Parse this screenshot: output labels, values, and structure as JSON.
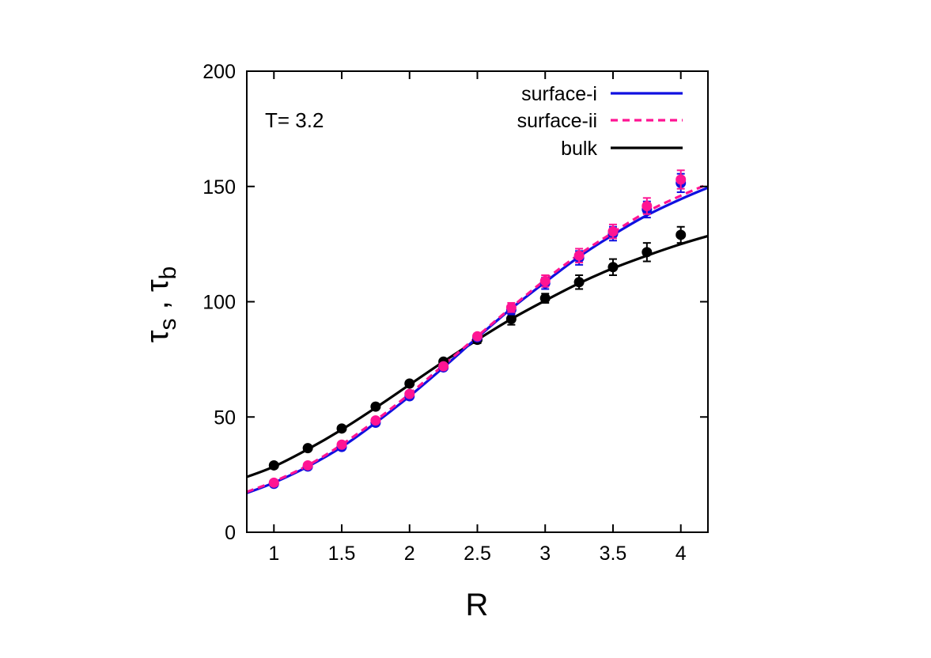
{
  "chart_data": {
    "type": "scatter",
    "title": "",
    "xlabel": "R",
    "ylabel_main": "τ",
    "ylabel_sub1": "s",
    "ylabel_sep": " , ",
    "ylabel_sub2": "b",
    "xlim": [
      0.8,
      4.2
    ],
    "ylim": [
      0,
      200
    ],
    "xticks": [
      1,
      1.5,
      2,
      2.5,
      3,
      3.5,
      4
    ],
    "xtick_labels": [
      "1",
      "1.5",
      "2",
      "2.5",
      "3",
      "3.5",
      "4"
    ],
    "yticks": [
      0,
      50,
      100,
      150,
      200
    ],
    "ytick_labels": [
      "0",
      "50",
      "100",
      "150",
      "200"
    ],
    "grid": false,
    "legend_position": "top-right",
    "annotation": "T= 3.2",
    "series": [
      {
        "name": "surface-i",
        "color": "#1010e0",
        "line_style": "solid",
        "x": [
          1,
          1.25,
          1.5,
          1.75,
          2,
          2.25,
          2.5,
          2.75,
          3,
          3.25,
          3.5,
          3.75,
          4
        ],
        "y": [
          21,
          28.5,
          37,
          47.5,
          59,
          71.5,
          84.5,
          96.5,
          108,
          119,
          129.5,
          140,
          151.5
        ],
        "err": [
          1,
          1,
          1,
          1,
          1,
          1,
          1,
          2,
          2.5,
          3,
          3,
          3.5,
          4
        ],
        "fit_x": [
          0.8,
          1,
          1.25,
          1.5,
          1.75,
          2,
          2.25,
          2.5,
          2.75,
          3,
          3.25,
          3.5,
          3.75,
          4,
          4.2
        ],
        "fit_y": [
          17,
          21.5,
          28.5,
          37,
          47.5,
          59,
          71.5,
          84.5,
          97,
          108.5,
          119.5,
          129,
          137.5,
          144.5,
          149.5
        ]
      },
      {
        "name": "surface-ii",
        "color": "#ff1493",
        "line_style": "dashed",
        "x": [
          1,
          1.25,
          1.5,
          1.75,
          2,
          2.25,
          2.5,
          2.75,
          3,
          3.25,
          3.5,
          3.75,
          4
        ],
        "y": [
          21.5,
          29,
          38,
          48.5,
          60,
          72,
          85,
          97.5,
          109,
          120,
          130.5,
          141.5,
          153
        ],
        "err": [
          1,
          1,
          1,
          1,
          1,
          1,
          1,
          2,
          2.5,
          3,
          3,
          3.5,
          4
        ],
        "fit_x": [
          0.8,
          1,
          1.25,
          1.5,
          1.75,
          2,
          2.25,
          2.5,
          2.75,
          3,
          3.25,
          3.5,
          3.75,
          4,
          4.2
        ],
        "fit_y": [
          17.5,
          22,
          29,
          38,
          48.5,
          60,
          72.5,
          85,
          97.5,
          109.5,
          120.5,
          130,
          139,
          146,
          151
        ]
      },
      {
        "name": "bulk",
        "color": "#000000",
        "line_style": "solid",
        "x": [
          1,
          1.25,
          1.5,
          1.75,
          2,
          2.25,
          2.5,
          2.75,
          3,
          3.25,
          3.5,
          3.75,
          4
        ],
        "y": [
          29,
          36.5,
          45,
          54.5,
          64.5,
          74,
          83.5,
          92.5,
          101.5,
          108.5,
          115,
          121.5,
          129
        ],
        "err": [
          1,
          1,
          1,
          1,
          1,
          1,
          1.5,
          2.5,
          2,
          3,
          3.5,
          4,
          3.5
        ],
        "fit_x": [
          0.8,
          1,
          1.25,
          1.5,
          1.75,
          2,
          2.25,
          2.5,
          2.75,
          3,
          3.25,
          3.5,
          3.75,
          4,
          4.2
        ],
        "fit_y": [
          24,
          28.5,
          36,
          44.5,
          54,
          64,
          74,
          83.5,
          92.5,
          100.5,
          108,
          114.5,
          120,
          125,
          128.5
        ]
      }
    ]
  }
}
